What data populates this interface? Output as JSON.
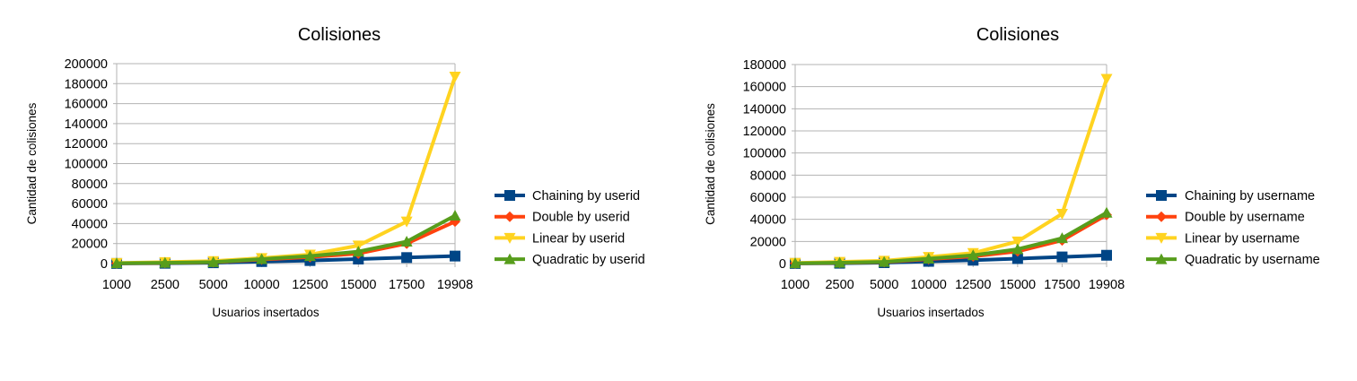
{
  "chart_data": [
    {
      "type": "line",
      "title": "Colisiones",
      "xlabel": "Usuarios insertados",
      "ylabel": "Cantidad de colisiones",
      "categories": [
        "1000",
        "2500",
        "5000",
        "10000",
        "12500",
        "15000",
        "17500",
        "19908"
      ],
      "ylim": [
        0,
        200000
      ],
      "yticks": [
        "0",
        "20000",
        "40000",
        "60000",
        "80000",
        "100000",
        "120000",
        "140000",
        "160000",
        "180000",
        "200000"
      ],
      "grid": "horizontal",
      "legend_position": "right",
      "series": [
        {
          "name": "Chaining by userid",
          "color": "#004586",
          "marker": "square",
          "values": [
            100,
            300,
            800,
            2000,
            3000,
            4500,
            6000,
            7500
          ]
        },
        {
          "name": "Double by userid",
          "color": "#ff420e",
          "marker": "diamond",
          "values": [
            200,
            700,
            1300,
            4000,
            6500,
            10000,
            20000,
            42000
          ]
        },
        {
          "name": "Linear by userid",
          "color": "#ffd320",
          "marker": "triangle-down",
          "values": [
            600,
            1500,
            2500,
            5500,
            9000,
            18000,
            42000,
            187000
          ]
        },
        {
          "name": "Quadratic by userid",
          "color": "#579d1c",
          "marker": "triangle-up",
          "values": [
            300,
            800,
            1500,
            4500,
            7500,
            12000,
            22000,
            48000
          ]
        }
      ]
    },
    {
      "type": "line",
      "title": "Colisiones",
      "xlabel": "Usuarios insertados",
      "ylabel": "Cantidad de colisiones",
      "categories": [
        "1000",
        "2500",
        "5000",
        "10000",
        "12500",
        "15000",
        "17500",
        "19908"
      ],
      "ylim": [
        0,
        180000
      ],
      "yticks": [
        "0",
        "20000",
        "40000",
        "60000",
        "80000",
        "100000",
        "120000",
        "140000",
        "160000",
        "180000"
      ],
      "grid": "horizontal",
      "legend_position": "right",
      "series": [
        {
          "name": "Chaining by username",
          "color": "#004586",
          "marker": "square",
          "values": [
            100,
            300,
            800,
            2000,
            3000,
            4500,
            6000,
            7500
          ]
        },
        {
          "name": "Double by username",
          "color": "#ff420e",
          "marker": "diamond",
          "values": [
            200,
            700,
            1300,
            4000,
            6500,
            11000,
            21000,
            44000
          ]
        },
        {
          "name": "Linear by username",
          "color": "#ffd320",
          "marker": "triangle-down",
          "values": [
            600,
            1500,
            2500,
            6000,
            9500,
            20000,
            45000,
            167000
          ]
        },
        {
          "name": "Quadratic by username",
          "color": "#579d1c",
          "marker": "triangle-up",
          "values": [
            300,
            800,
            1500,
            4500,
            7500,
            13000,
            23000,
            46000
          ]
        }
      ]
    }
  ]
}
